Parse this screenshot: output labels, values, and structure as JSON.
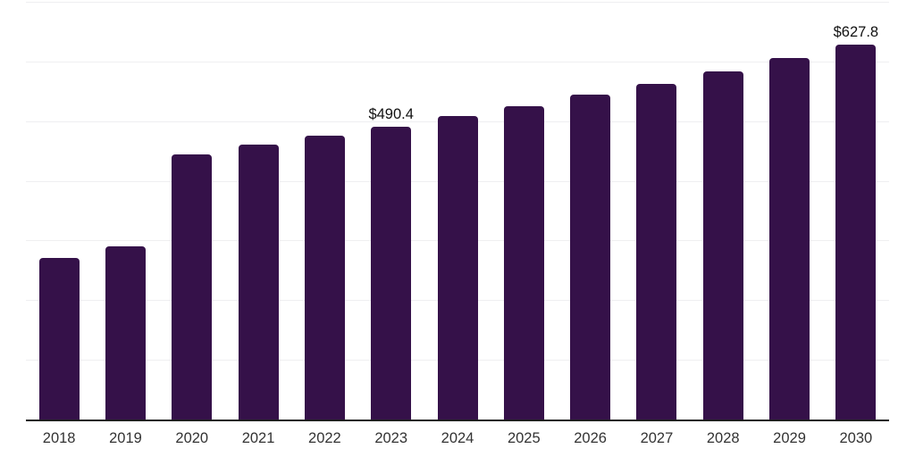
{
  "chart_data": {
    "type": "bar",
    "title": "",
    "xlabel": "",
    "ylabel": "",
    "categories": [
      "2018",
      "2019",
      "2020",
      "2021",
      "2022",
      "2023",
      "2024",
      "2025",
      "2026",
      "2027",
      "2028",
      "2029",
      "2030"
    ],
    "values": [
      271,
      290,
      444,
      460,
      475.5,
      490.4,
      508,
      525,
      545,
      563,
      583,
      606,
      627.8
    ],
    "point_labels": [
      "",
      "",
      "",
      "",
      "",
      "$490.4",
      "",
      "",
      "",
      "",
      "",
      "",
      "$627.8"
    ],
    "ylim": [
      0,
      700
    ],
    "gridline_step": 100,
    "grid": "horizontal-only",
    "legend": "none",
    "y_axis_tick_labels_visible": false
  },
  "colors": {
    "background": "#ffffff",
    "bar": "#351149",
    "gridline": "#efeff1",
    "axis_line": "#1f1f1f",
    "tick_label": "#333333",
    "value_label": "#111111"
  }
}
